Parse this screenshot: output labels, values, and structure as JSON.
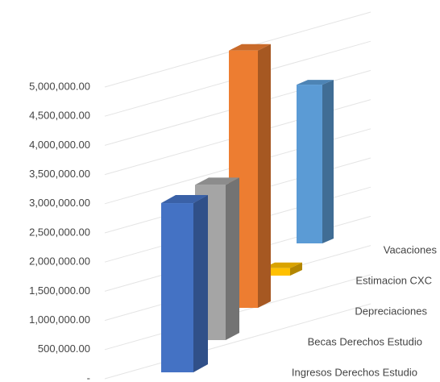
{
  "chart_data": {
    "type": "bar3d",
    "categories": [
      "Ingresos Derechos Estudio",
      "Becas Derechos Estudio",
      "Depreciaciones",
      "Estimacion CXC",
      "Vacaciones"
    ],
    "values": [
      2900000,
      2800000,
      4900000,
      150000,
      3400000
    ],
    "colors": [
      "#4472c4",
      "#a5a5a5",
      "#ed7d31",
      "#ffc000",
      "#5b9bd5"
    ],
    "ylim": [
      0,
      5000000
    ],
    "yticks": [
      {
        "value": 0,
        "label": "-"
      },
      {
        "value": 500000,
        "label": "500,000.00"
      },
      {
        "value": 1000000,
        "label": "1,000,000.00"
      },
      {
        "value": 1500000,
        "label": "1,500,000.00"
      },
      {
        "value": 2000000,
        "label": "2,000,000.00"
      },
      {
        "value": 2500000,
        "label": "2,500,000.00"
      },
      {
        "value": 3000000,
        "label": "3,000,000.00"
      },
      {
        "value": 3500000,
        "label": "3,500,000.00"
      },
      {
        "value": 4000000,
        "label": "4,000,000.00"
      },
      {
        "value": 4500000,
        "label": "4,500,000.00"
      },
      {
        "value": 5000000,
        "label": "5,000,000.00"
      }
    ],
    "grid": true
  }
}
